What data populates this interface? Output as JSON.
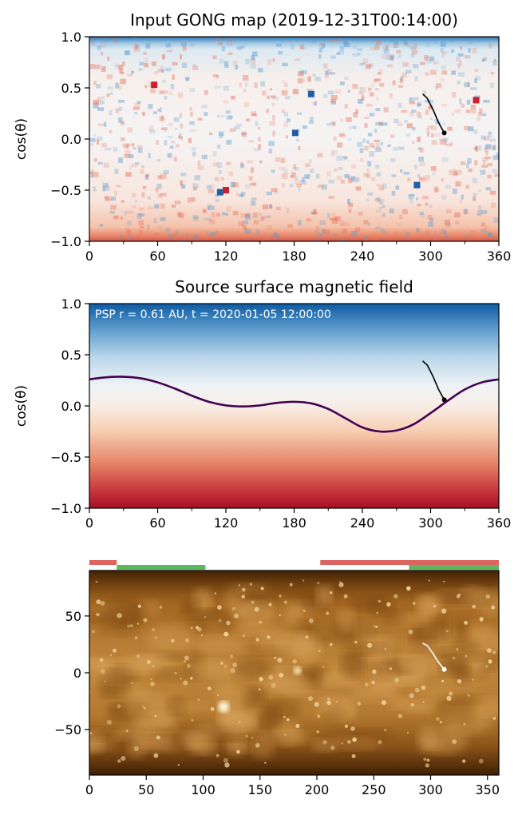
{
  "chart_data": [
    {
      "type": "heatmap",
      "title": "Input GONG map (2019-12-31T00:14:00)",
      "xlabel": "",
      "ylabel": "cos(θ)",
      "xlim": [
        0,
        360
      ],
      "ylim": [
        -1.0,
        1.0
      ],
      "xticks": [
        "0",
        "60",
        "120",
        "180",
        "240",
        "300",
        "360"
      ],
      "yticks": [
        "−1.0",
        "−0.5",
        "0.0",
        "0.5",
        "1.0"
      ],
      "colormap": "RdBu_r",
      "colors": {
        "positive": "#c8202d",
        "negative": "#1f5fa8",
        "zero": "#f7f7f7"
      },
      "features": [
        {
          "x": 115,
          "y": -0.52,
          "polarity": "negative"
        },
        {
          "x": 120,
          "y": -0.5,
          "polarity": "positive"
        },
        {
          "x": 57,
          "y": 0.53,
          "polarity": "positive"
        },
        {
          "x": 181,
          "y": 0.06,
          "polarity": "negative"
        },
        {
          "x": 195,
          "y": 0.44,
          "polarity": "negative"
        },
        {
          "x": 288,
          "y": -0.45,
          "polarity": "negative"
        },
        {
          "x": 340,
          "y": 0.38,
          "polarity": "positive"
        }
      ],
      "field_line": {
        "x": [
          293,
          297,
          302,
          307,
          312
        ],
        "y": [
          0.44,
          0.4,
          0.29,
          0.16,
          0.06
        ]
      }
    },
    {
      "type": "heatmap",
      "title": "Source surface magnetic field",
      "annotation": "PSP r = 0.61 AU, t = 2020-01-05 12:00:00",
      "xlabel": "",
      "ylabel": "cos(θ)",
      "xlim": [
        0,
        360
      ],
      "ylim": [
        -1.0,
        1.0
      ],
      "xticks": [
        "0",
        "60",
        "120",
        "180",
        "240",
        "300",
        "360"
      ],
      "yticks": [
        "−1.0",
        "−0.5",
        "0.0",
        "0.5",
        "1.0"
      ],
      "colormap": "RdBu_r",
      "colors": {
        "neutral_line": "#440154"
      },
      "neutral_line": {
        "x": [
          0,
          15,
          30,
          45,
          60,
          75,
          90,
          105,
          120,
          135,
          150,
          165,
          180,
          195,
          210,
          225,
          240,
          255,
          270,
          285,
          300,
          315,
          330,
          345,
          360
        ],
        "y": [
          0.26,
          0.28,
          0.285,
          0.27,
          0.23,
          0.17,
          0.1,
          0.04,
          0.005,
          -0.005,
          0.005,
          0.03,
          0.04,
          0.025,
          -0.03,
          -0.12,
          -0.21,
          -0.25,
          -0.24,
          -0.18,
          -0.07,
          0.05,
          0.16,
          0.23,
          0.26
        ]
      },
      "field_line": {
        "x": [
          293,
          297,
          302,
          307,
          312
        ],
        "y": [
          0.44,
          0.4,
          0.29,
          0.16,
          0.06
        ]
      }
    },
    {
      "type": "heatmap",
      "title": "",
      "xlabel": "",
      "ylabel": "",
      "xlim": [
        0,
        360
      ],
      "ylim": [
        -90,
        90
      ],
      "xticks": [
        "0",
        "50",
        "100",
        "150",
        "200",
        "250",
        "300",
        "350"
      ],
      "yticks": [
        "−50",
        "0",
        "50"
      ],
      "colormap": "sdoaia193",
      "colors": {
        "red_bar": "#d9534f",
        "green_bar": "#4caf50",
        "field_line": "#ffffff"
      },
      "bars": {
        "red": [
          [
            0,
            24
          ],
          [
            203,
            360
          ]
        ],
        "green": [
          [
            24,
            102
          ],
          [
            281,
            360
          ]
        ]
      },
      "field_line": {
        "x": [
          293,
          297,
          302,
          307,
          312
        ],
        "y": [
          26,
          24,
          17,
          9,
          3
        ]
      }
    }
  ]
}
